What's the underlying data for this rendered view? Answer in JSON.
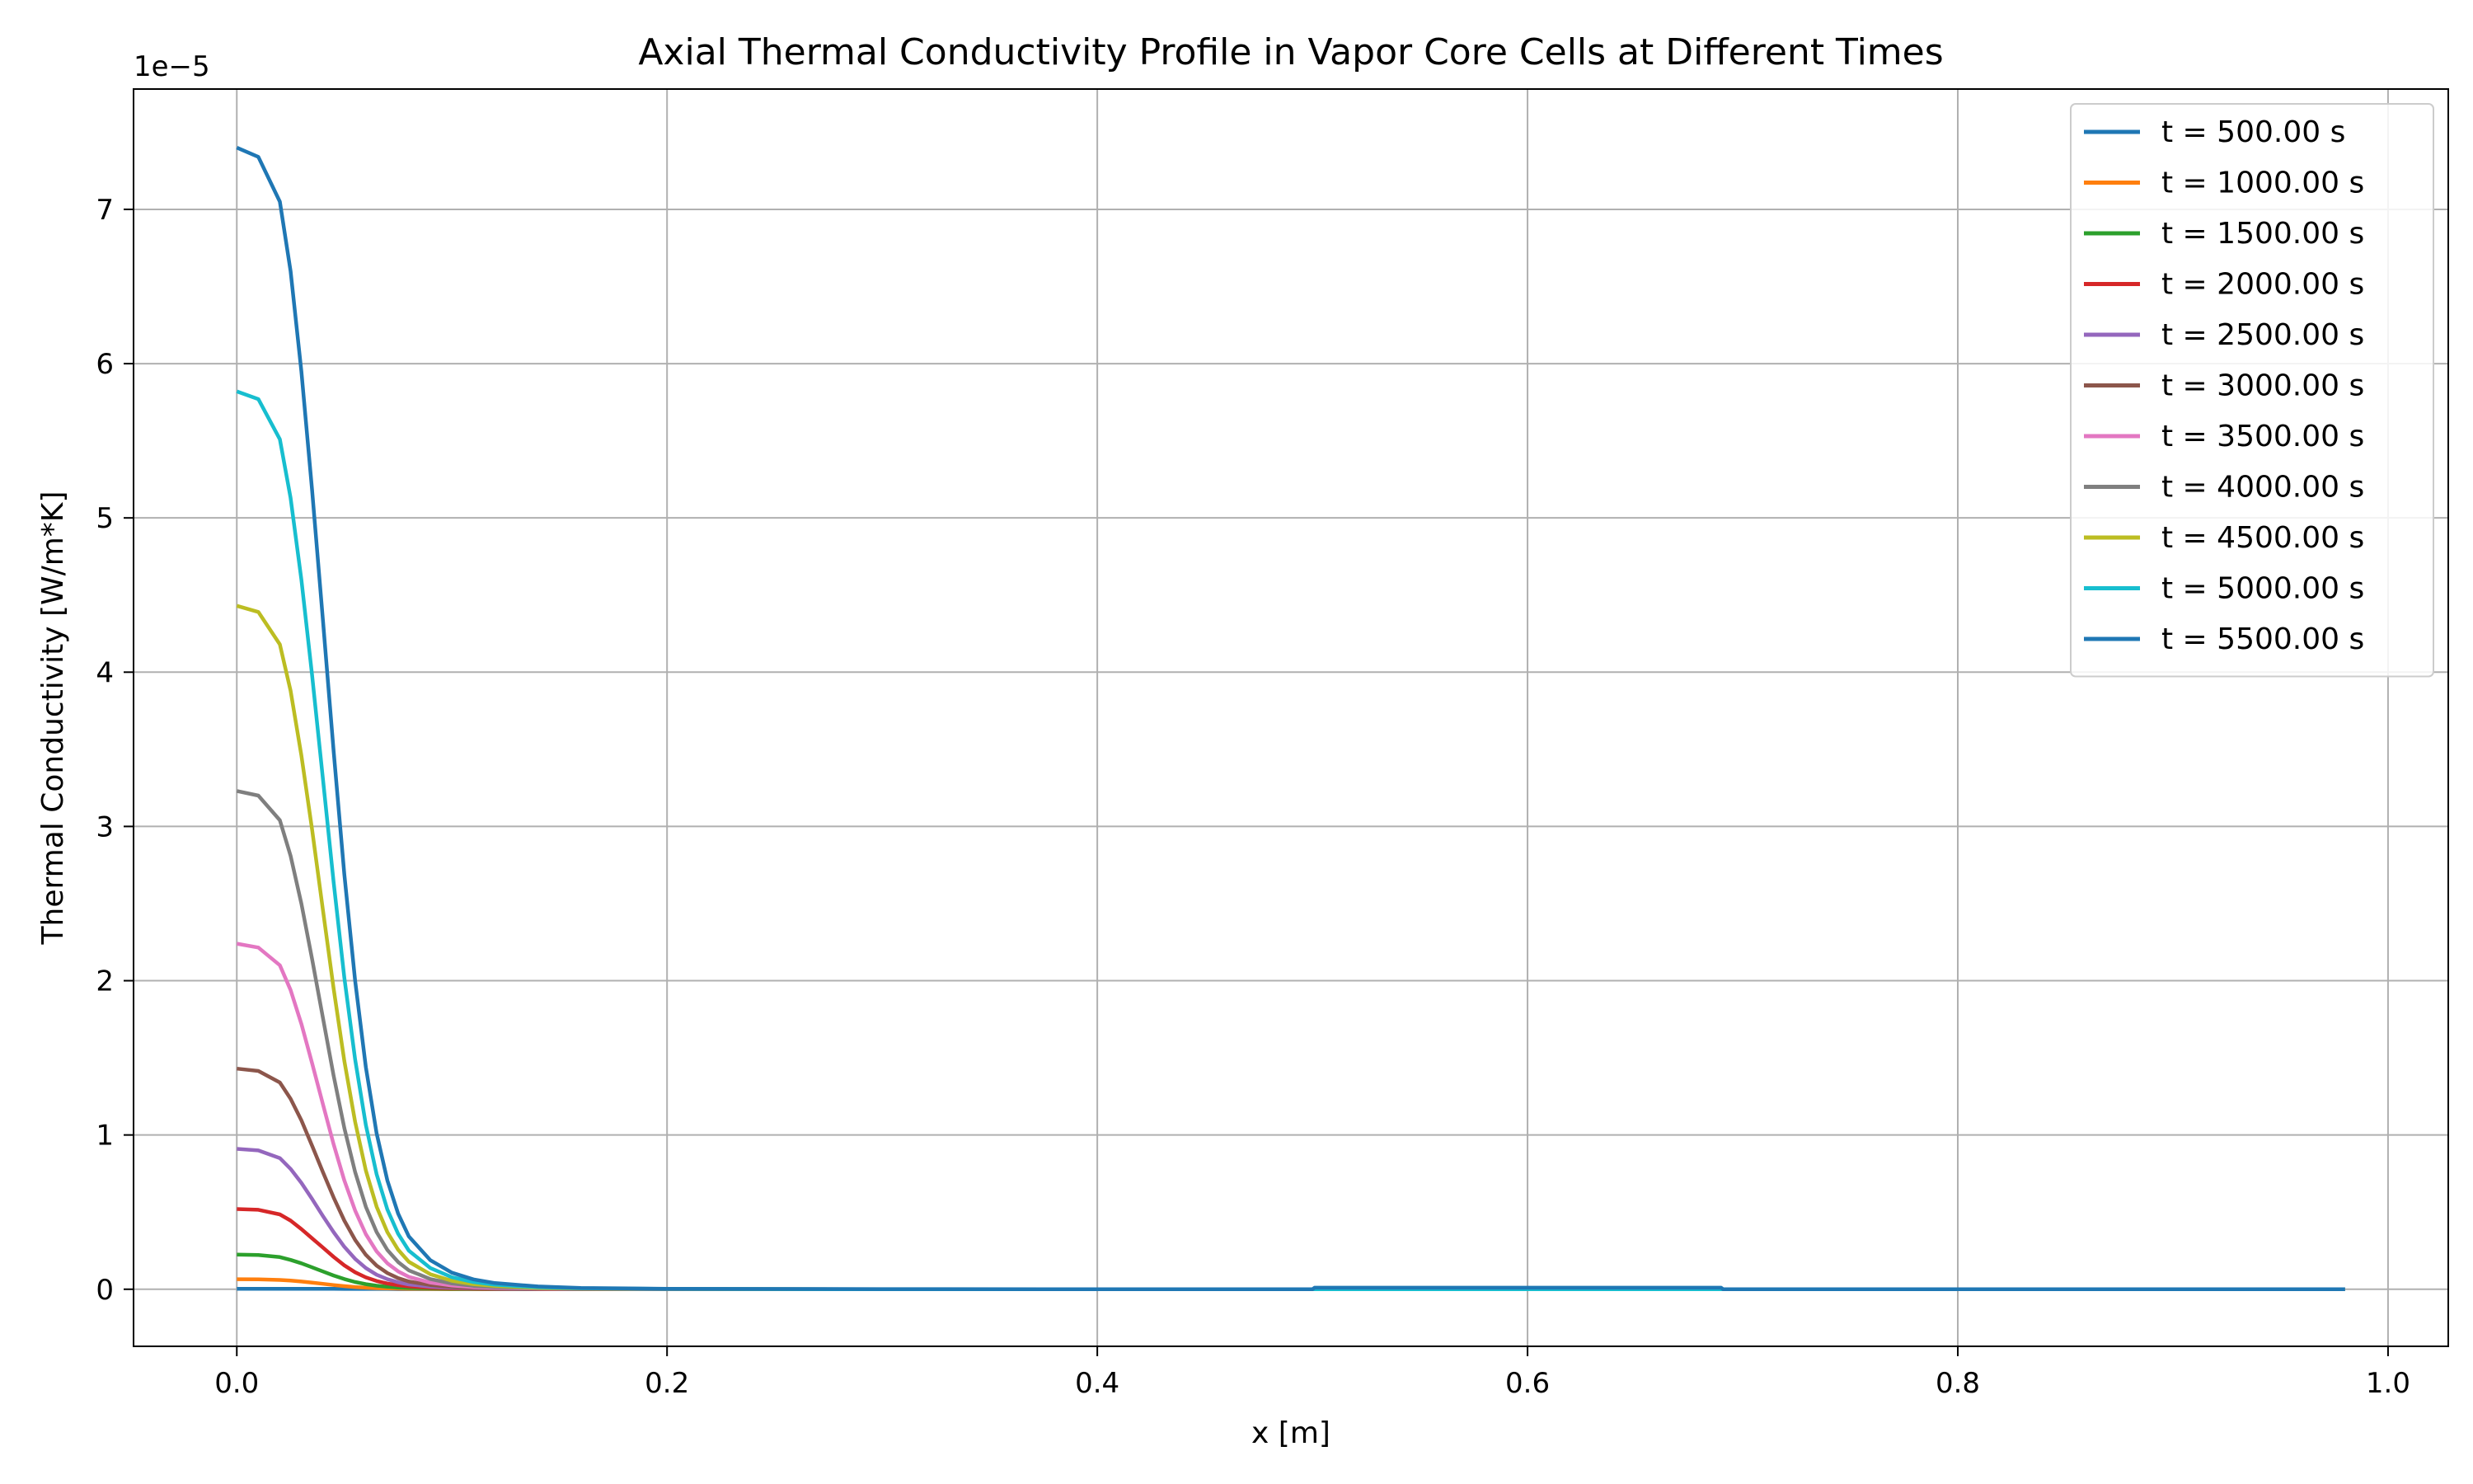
{
  "chart_data": {
    "type": "line",
    "title": "Axial Thermal Conductivity Profile in Vapor Core Cells at Different Times",
    "xlabel": "x [m]",
    "ylabel": "Thermal Conductivity [W/m*K]",
    "y_offset_label": "1e−5",
    "y_scale": 1e-05,
    "xlim": [
      -0.048,
      1.028
    ],
    "ylim": [
      -0.37,
      7.78
    ],
    "x_ticks": [
      0.0,
      0.2,
      0.4,
      0.6,
      0.8,
      1.0
    ],
    "x_tick_labels": [
      "0.0",
      "0.2",
      "0.4",
      "0.6",
      "0.8",
      "1.0"
    ],
    "y_ticks": [
      0,
      1,
      2,
      3,
      4,
      5,
      6,
      7
    ],
    "y_tick_labels": [
      "0",
      "1",
      "2",
      "3",
      "4",
      "5",
      "6",
      "7"
    ],
    "grid": true,
    "legend_position": "top-right",
    "x": [
      0.0,
      0.01,
      0.02,
      0.025,
      0.03,
      0.035,
      0.04,
      0.045,
      0.05,
      0.055,
      0.06,
      0.065,
      0.07,
      0.075,
      0.08,
      0.09,
      0.1,
      0.11,
      0.12,
      0.14,
      0.16,
      0.2,
      0.3,
      0.4,
      0.5,
      0.501,
      0.6,
      0.69,
      0.691,
      0.8,
      0.9,
      0.98
    ],
    "series": [
      {
        "name": "t = 500.00 s",
        "color": "#1f77b4",
        "values": [
          0.003,
          0.003,
          0.003,
          0.003,
          0.003,
          0.003,
          0.003,
          0.003,
          0.002,
          0.002,
          0.002,
          0.002,
          0.002,
          0.001,
          0.001,
          0.001,
          0.001,
          0.001,
          0.001,
          0.0,
          0.0,
          0.0,
          0.0,
          0.0,
          0.0,
          0.0,
          0.0,
          0.0,
          0.0,
          0.0,
          0.0,
          0.0
        ]
      },
      {
        "name": "t = 1000.00 s",
        "color": "#ff7f0e",
        "values": [
          0.065,
          0.064,
          0.06,
          0.056,
          0.05,
          0.043,
          0.035,
          0.027,
          0.02,
          0.014,
          0.01,
          0.007,
          0.005,
          0.004,
          0.003,
          0.002,
          0.001,
          0.001,
          0.0,
          0.0,
          0.0,
          0.0,
          0.0,
          0.0,
          0.0,
          0.0,
          0.0,
          0.0,
          0.0,
          0.0,
          0.0,
          0.0
        ]
      },
      {
        "name": "t = 1500.00 s",
        "color": "#2ca02c",
        "values": [
          0.225,
          0.222,
          0.208,
          0.19,
          0.168,
          0.142,
          0.115,
          0.089,
          0.066,
          0.047,
          0.033,
          0.023,
          0.016,
          0.011,
          0.008,
          0.005,
          0.003,
          0.002,
          0.001,
          0.0,
          0.0,
          0.0,
          0.0,
          0.0,
          0.0,
          0.0,
          0.0,
          0.0,
          0.0,
          0.0,
          0.0,
          0.0
        ]
      },
      {
        "name": "t = 2000.00 s",
        "color": "#d62728",
        "values": [
          0.52,
          0.515,
          0.485,
          0.445,
          0.39,
          0.33,
          0.27,
          0.21,
          0.155,
          0.11,
          0.077,
          0.053,
          0.037,
          0.026,
          0.018,
          0.01,
          0.006,
          0.004,
          0.002,
          0.001,
          0.0,
          0.0,
          0.0,
          0.0,
          0.0,
          0.0,
          0.0,
          0.0,
          0.0,
          0.0,
          0.0,
          0.0
        ]
      },
      {
        "name": "t = 2500.00 s",
        "color": "#9467bd",
        "values": [
          0.91,
          0.9,
          0.85,
          0.78,
          0.69,
          0.585,
          0.475,
          0.37,
          0.275,
          0.197,
          0.137,
          0.094,
          0.065,
          0.045,
          0.031,
          0.017,
          0.01,
          0.006,
          0.004,
          0.002,
          0.001,
          0.0,
          0.0,
          0.0,
          0.0,
          0.0,
          0.0,
          0.0,
          0.0,
          0.0,
          0.0,
          0.0
        ]
      },
      {
        "name": "t = 3000.00 s",
        "color": "#8c564b",
        "values": [
          1.43,
          1.415,
          1.34,
          1.235,
          1.095,
          0.93,
          0.76,
          0.595,
          0.445,
          0.32,
          0.223,
          0.153,
          0.105,
          0.072,
          0.05,
          0.027,
          0.015,
          0.009,
          0.006,
          0.003,
          0.001,
          0.0,
          0.0,
          0.0,
          0.0,
          0.0,
          0.0,
          0.0,
          0.0,
          0.0,
          0.0,
          0.0
        ]
      },
      {
        "name": "t = 3500.00 s",
        "color": "#e377c2",
        "values": [
          2.24,
          2.215,
          2.1,
          1.94,
          1.72,
          1.465,
          1.2,
          0.94,
          0.705,
          0.51,
          0.357,
          0.245,
          0.168,
          0.116,
          0.08,
          0.043,
          0.024,
          0.014,
          0.009,
          0.004,
          0.002,
          0.001,
          0.0,
          0.0,
          0.0,
          0.0,
          0.0,
          0.0,
          0.0,
          0.0,
          0.0,
          0.0
        ]
      },
      {
        "name": "t = 4000.00 s",
        "color": "#7f7f7f",
        "values": [
          3.23,
          3.2,
          3.04,
          2.81,
          2.5,
          2.14,
          1.76,
          1.385,
          1.045,
          0.76,
          0.535,
          0.37,
          0.255,
          0.176,
          0.122,
          0.066,
          0.037,
          0.022,
          0.014,
          0.006,
          0.003,
          0.001,
          0.0,
          0.0,
          0.0,
          0.0,
          0.0,
          0.0,
          0.0,
          0.0,
          0.0,
          0.0
        ]
      },
      {
        "name": "t = 4500.00 s",
        "color": "#bcbd22",
        "values": [
          4.43,
          4.39,
          4.18,
          3.88,
          3.46,
          2.98,
          2.46,
          1.95,
          1.48,
          1.085,
          0.77,
          0.535,
          0.37,
          0.256,
          0.178,
          0.097,
          0.055,
          0.033,
          0.021,
          0.009,
          0.004,
          0.002,
          0.0,
          0.0,
          0.0,
          0.0,
          0.0,
          0.0,
          0.0,
          0.0,
          0.0,
          0.0
        ]
      },
      {
        "name": "t = 5000.00 s",
        "color": "#17becf",
        "values": [
          5.82,
          5.77,
          5.51,
          5.13,
          4.6,
          3.98,
          3.31,
          2.64,
          2.02,
          1.49,
          1.065,
          0.745,
          0.517,
          0.359,
          0.25,
          0.137,
          0.078,
          0.047,
          0.029,
          0.013,
          0.006,
          0.002,
          0.0,
          0.0,
          0.0,
          0.0,
          0.0,
          0.0,
          0.0,
          0.0,
          0.0,
          0.0
        ]
      },
      {
        "name": "t = 5500.00 s",
        "color": "#1f77b4",
        "values": [
          7.4,
          7.34,
          7.05,
          6.6,
          5.95,
          5.18,
          4.34,
          3.49,
          2.69,
          2.0,
          1.44,
          1.01,
          0.705,
          0.49,
          0.342,
          0.188,
          0.107,
          0.064,
          0.04,
          0.018,
          0.008,
          0.003,
          0.001,
          0.0,
          0.0,
          0.01,
          0.01,
          0.01,
          0.0,
          0.0,
          0.0,
          0.0
        ]
      }
    ]
  }
}
